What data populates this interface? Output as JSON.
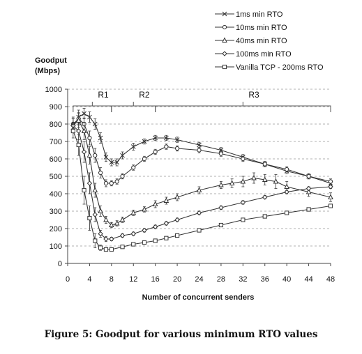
{
  "caption": "Figure 5: Goodput for various minimum RTO values",
  "chart_data": {
    "type": "line",
    "title": "",
    "ylabel": "Goodput\n(Mbps)",
    "xlabel": "Number of concurrent senders",
    "xlim": [
      0,
      48
    ],
    "ylim": [
      0,
      1000
    ],
    "xticks": [
      0,
      4,
      8,
      12,
      16,
      20,
      24,
      28,
      32,
      36,
      40,
      44,
      48
    ],
    "yticks": [
      0,
      100,
      200,
      300,
      400,
      500,
      600,
      700,
      800,
      900,
      1000
    ],
    "grid": "horizontal-dashed",
    "legend_position": "top-right",
    "regions": [
      {
        "label": "R1",
        "x_start": 1,
        "x_end": 8
      },
      {
        "label": "R2",
        "x_start": 8,
        "x_end": 16
      },
      {
        "label": "R3",
        "x_start": 16,
        "x_end": 48
      }
    ],
    "series": [
      {
        "name": "1ms min RTO",
        "marker": "x",
        "x": [
          1,
          2,
          3,
          4,
          5,
          6,
          7,
          8,
          9,
          10,
          12,
          14,
          16,
          18,
          20,
          24,
          28,
          32,
          36,
          40,
          44,
          48
        ],
        "values": [
          780,
          840,
          860,
          840,
          800,
          720,
          610,
          580,
          580,
          620,
          670,
          700,
          720,
          720,
          710,
          680,
          650,
          610,
          570,
          530,
          500,
          460
        ],
        "errors": [
          30,
          40,
          30,
          30,
          30,
          30,
          25,
          20,
          20,
          20,
          20,
          15,
          15,
          15,
          15,
          15,
          15,
          15,
          15,
          15,
          15,
          15
        ]
      },
      {
        "name": "10ms min RTO",
        "marker": "circle",
        "x": [
          1,
          2,
          3,
          4,
          5,
          6,
          7,
          8,
          9,
          10,
          12,
          14,
          16,
          18,
          20,
          24,
          28,
          32,
          36,
          40,
          44,
          48
        ],
        "values": [
          800,
          830,
          800,
          720,
          620,
          520,
          460,
          460,
          470,
          500,
          550,
          600,
          640,
          670,
          660,
          650,
          630,
          600,
          570,
          540,
          500,
          470
        ],
        "errors": [
          30,
          35,
          35,
          40,
          40,
          30,
          20,
          15,
          15,
          15,
          15,
          15,
          15,
          15,
          15,
          15,
          15,
          15,
          15,
          15,
          15,
          15
        ]
      },
      {
        "name": "40ms min RTO",
        "marker": "triangle",
        "x": [
          1,
          2,
          3,
          4,
          5,
          6,
          7,
          8,
          9,
          10,
          12,
          14,
          16,
          18,
          20,
          24,
          28,
          30,
          32,
          34,
          36,
          38,
          40,
          44,
          48
        ],
        "values": [
          800,
          820,
          760,
          620,
          420,
          300,
          250,
          220,
          230,
          250,
          290,
          310,
          340,
          360,
          380,
          420,
          450,
          460,
          470,
          490,
          480,
          470,
          440,
          410,
          380
        ],
        "errors": [
          40,
          40,
          50,
          50,
          40,
          30,
          20,
          15,
          15,
          15,
          15,
          15,
          20,
          20,
          20,
          20,
          20,
          25,
          30,
          30,
          30,
          40,
          30,
          25,
          25
        ]
      },
      {
        "name": "100ms min RTO",
        "marker": "diamond",
        "x": [
          1,
          2,
          3,
          4,
          5,
          6,
          7,
          8,
          10,
          12,
          14,
          16,
          18,
          20,
          24,
          28,
          32,
          36,
          40,
          44,
          48
        ],
        "values": [
          790,
          760,
          640,
          460,
          280,
          170,
          140,
          140,
          160,
          170,
          190,
          210,
          230,
          250,
          290,
          320,
          350,
          380,
          410,
          430,
          440
        ],
        "errors": [
          40,
          50,
          60,
          60,
          40,
          20,
          15,
          10,
          10,
          10,
          10,
          10,
          10,
          10,
          10,
          10,
          10,
          10,
          10,
          10,
          10
        ]
      },
      {
        "name": "Vanilla TCP - 200ms RTO",
        "marker": "square",
        "x": [
          1,
          2,
          3,
          4,
          5,
          6,
          7,
          8,
          10,
          12,
          14,
          16,
          18,
          20,
          24,
          28,
          32,
          36,
          40,
          44,
          48
        ],
        "values": [
          760,
          680,
          420,
          260,
          130,
          90,
          80,
          80,
          95,
          110,
          120,
          130,
          145,
          160,
          190,
          220,
          250,
          270,
          290,
          310,
          330
        ],
        "errors": [
          40,
          60,
          80,
          70,
          40,
          15,
          10,
          10,
          8,
          8,
          8,
          8,
          8,
          8,
          8,
          8,
          8,
          8,
          8,
          8,
          8
        ]
      }
    ]
  }
}
